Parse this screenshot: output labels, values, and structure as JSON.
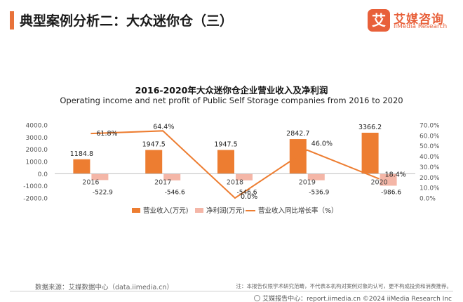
{
  "header": {
    "title": "典型案例分析二：大众迷你仓（三）",
    "brand_mark": "艾",
    "brand_name": "艾媒咨询",
    "brand_en": "iiMedia Research"
  },
  "colors": {
    "accent": "#e8723a",
    "income_bar": "#ed7d31",
    "profit_bar": "#f4b6a7",
    "growth_line": "#ed7d31",
    "brand": "#e8603a"
  },
  "chart_data": {
    "type": "bar",
    "title": "2016-2020年大众迷你仓企业营业收入及净利润",
    "subtitle": "Operating income and net profit of Public Self Storage companies from 2016 to 2020",
    "categories": [
      "2016",
      "2017",
      "2018",
      "2019",
      "2020"
    ],
    "series": [
      {
        "name": "营业收入(万元)",
        "kind": "bar",
        "axis": "left",
        "values": [
          1184.8,
          1947.5,
          1947.5,
          2842.7,
          3366.2
        ],
        "labels": [
          "1184.8",
          "1947.5",
          "1947.5",
          "2842.7",
          "3366.2"
        ]
      },
      {
        "name": "净利润(万元)",
        "kind": "bar",
        "axis": "left",
        "values": [
          -522.9,
          -546.6,
          -546.6,
          -536.9,
          -986.6
        ],
        "labels": [
          "-522.9",
          "-546.6",
          "-546.6",
          "-536.9",
          "-986.6"
        ]
      },
      {
        "name": "营业收入同比增长率（%）",
        "kind": "line",
        "axis": "right",
        "values": [
          61.8,
          64.4,
          0.0,
          46.0,
          18.4
        ],
        "labels": [
          "61.8%",
          "64.4%",
          "0.0%",
          "46.0%",
          "18.4%"
        ]
      }
    ],
    "ylim": [
      -2000,
      4000
    ],
    "yticks": [
      "-2000.0",
      "-1000.0",
      "0.0",
      "1000.0",
      "2000.0",
      "3000.0",
      "4000.0"
    ],
    "y2lim": [
      0,
      70
    ],
    "y2ticks": [
      "0.0%",
      "10.0%",
      "20.0%",
      "30.0%",
      "40.0%",
      "50.0%",
      "60.0%",
      "70.0%"
    ],
    "legend_position": "bottom"
  },
  "footer": {
    "source": "数据来源：艾媒数据中心（data.iimedia.cn）",
    "note": "注：本报告仅限学术研究范畴，不代表本机构对案例对象的认可，更不构成投资和消费推荐。",
    "report": "艾媒报告中心：report.iimedia.cn   ©2024  iiMedia Research  Inc"
  }
}
